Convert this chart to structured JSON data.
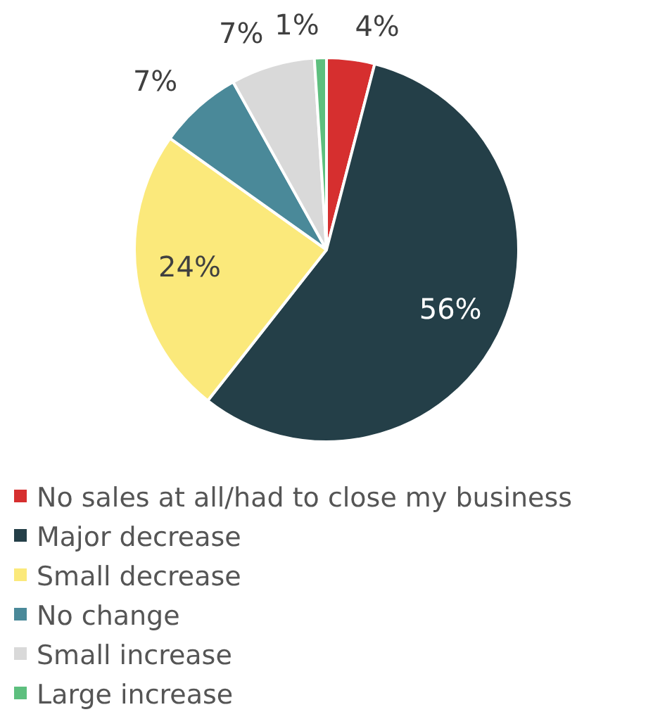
{
  "chart_data": {
    "type": "pie",
    "categories": [
      "No sales at all/had to close my business",
      "Major decrease",
      "Small decrease",
      "No change",
      "Small increase",
      "Large increase"
    ],
    "values": [
      4,
      56,
      24,
      7,
      7,
      1
    ],
    "colors": [
      "#d62f2f",
      "#243f48",
      "#fbe97b",
      "#4a8999",
      "#d9d9d9",
      "#5dbf7e"
    ],
    "value_labels": [
      "4%",
      "56%",
      "24%",
      "7%",
      "7%",
      "1%"
    ],
    "legend": "bottom"
  }
}
